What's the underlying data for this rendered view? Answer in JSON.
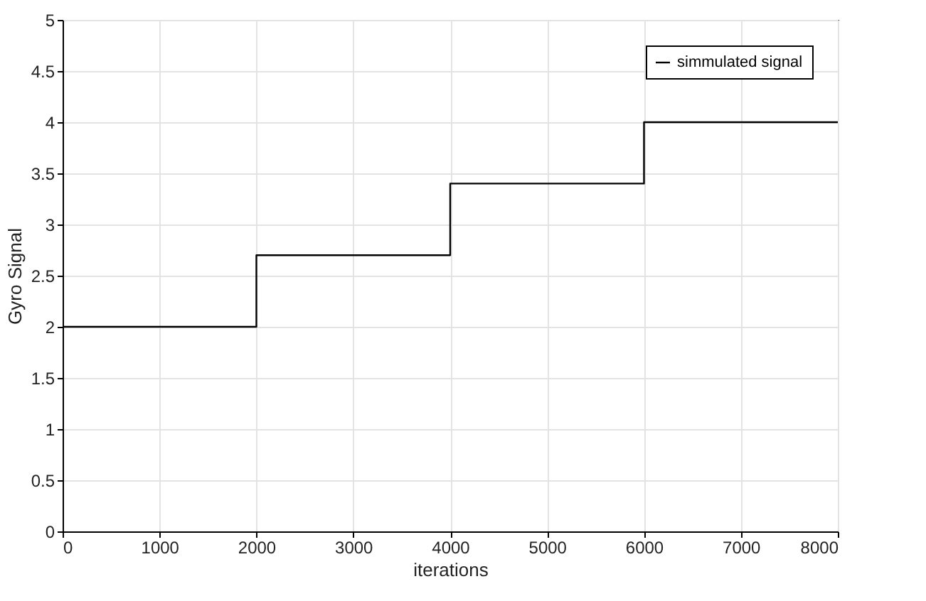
{
  "chart_data": {
    "type": "step",
    "xlabel": "iterations",
    "ylabel": "Gyro Signal",
    "x": [
      0,
      2000,
      4000,
      6000,
      8000
    ],
    "series": [
      {
        "name": "simmulated signal",
        "color": "#000000",
        "values": [
          2,
          2.7,
          3.4,
          4,
          4
        ]
      }
    ],
    "xlim": [
      0,
      8000
    ],
    "xticks": [
      0,
      1000,
      2000,
      3000,
      4000,
      5000,
      6000,
      7000,
      8000
    ],
    "ylim": [
      0,
      5
    ],
    "yticks": [
      0,
      0.5,
      1,
      1.5,
      2,
      2.5,
      3,
      3.5,
      4,
      4.5,
      5
    ],
    "grid": true,
    "legend": "top right",
    "line_style": "solid"
  }
}
